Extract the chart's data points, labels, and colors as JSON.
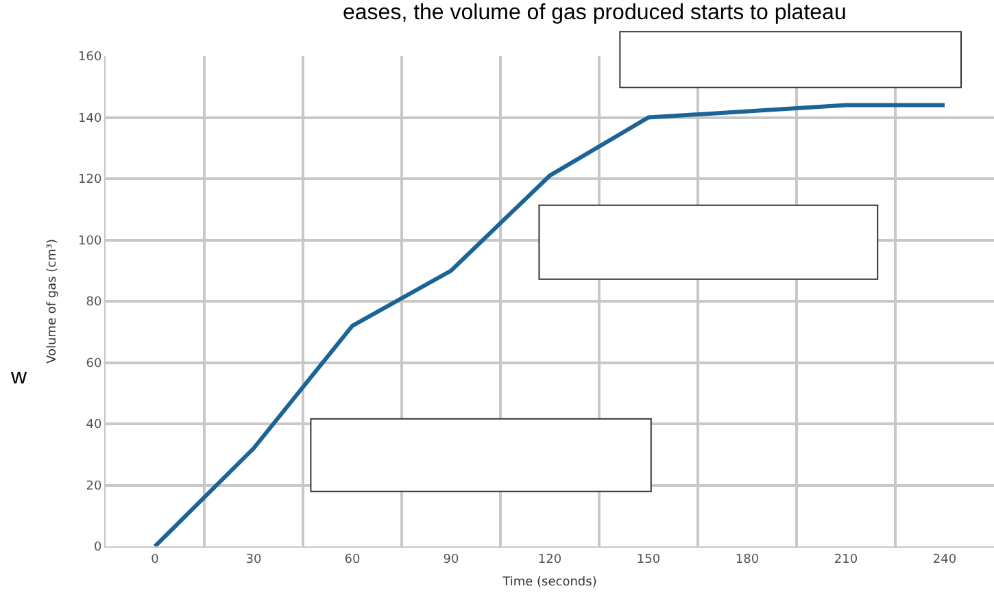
{
  "chart_data": {
    "type": "line",
    "xlabel": "Time (seconds)",
    "ylabel": "Volume of gas (cm³)",
    "annotations": [
      "eases, the volume of gas produced starts to plateau",
      "w"
    ],
    "x": [
      0,
      30,
      60,
      90,
      120,
      150,
      210,
      240
    ],
    "series": [
      {
        "color": "#1a6496",
        "values": [
          0,
          32,
          72,
          90,
          121,
          140,
          144,
          144
        ]
      }
    ],
    "xlim": [
      -15,
      255
    ],
    "xticks": [
      0,
      30,
      60,
      90,
      120,
      150,
      180,
      210,
      240,
      {
        "value": 15,
        "label": null
      },
      {
        "value": 45,
        "label": null
      },
      {
        "value": 75,
        "label": null
      },
      {
        "value": 105,
        "label": null
      },
      {
        "value": 135,
        "label": null
      },
      {
        "value": 165,
        "label": null
      },
      {
        "value": 195,
        "label": null
      },
      {
        "value": 225,
        "label": null
      }
    ],
    "ylim": [
      0,
      160
    ],
    "yticks": [
      0,
      20,
      40,
      60,
      80,
      100,
      120,
      140,
      160
    ],
    "grid": true,
    "marker": "none",
    "line_style": "solid"
  }
}
